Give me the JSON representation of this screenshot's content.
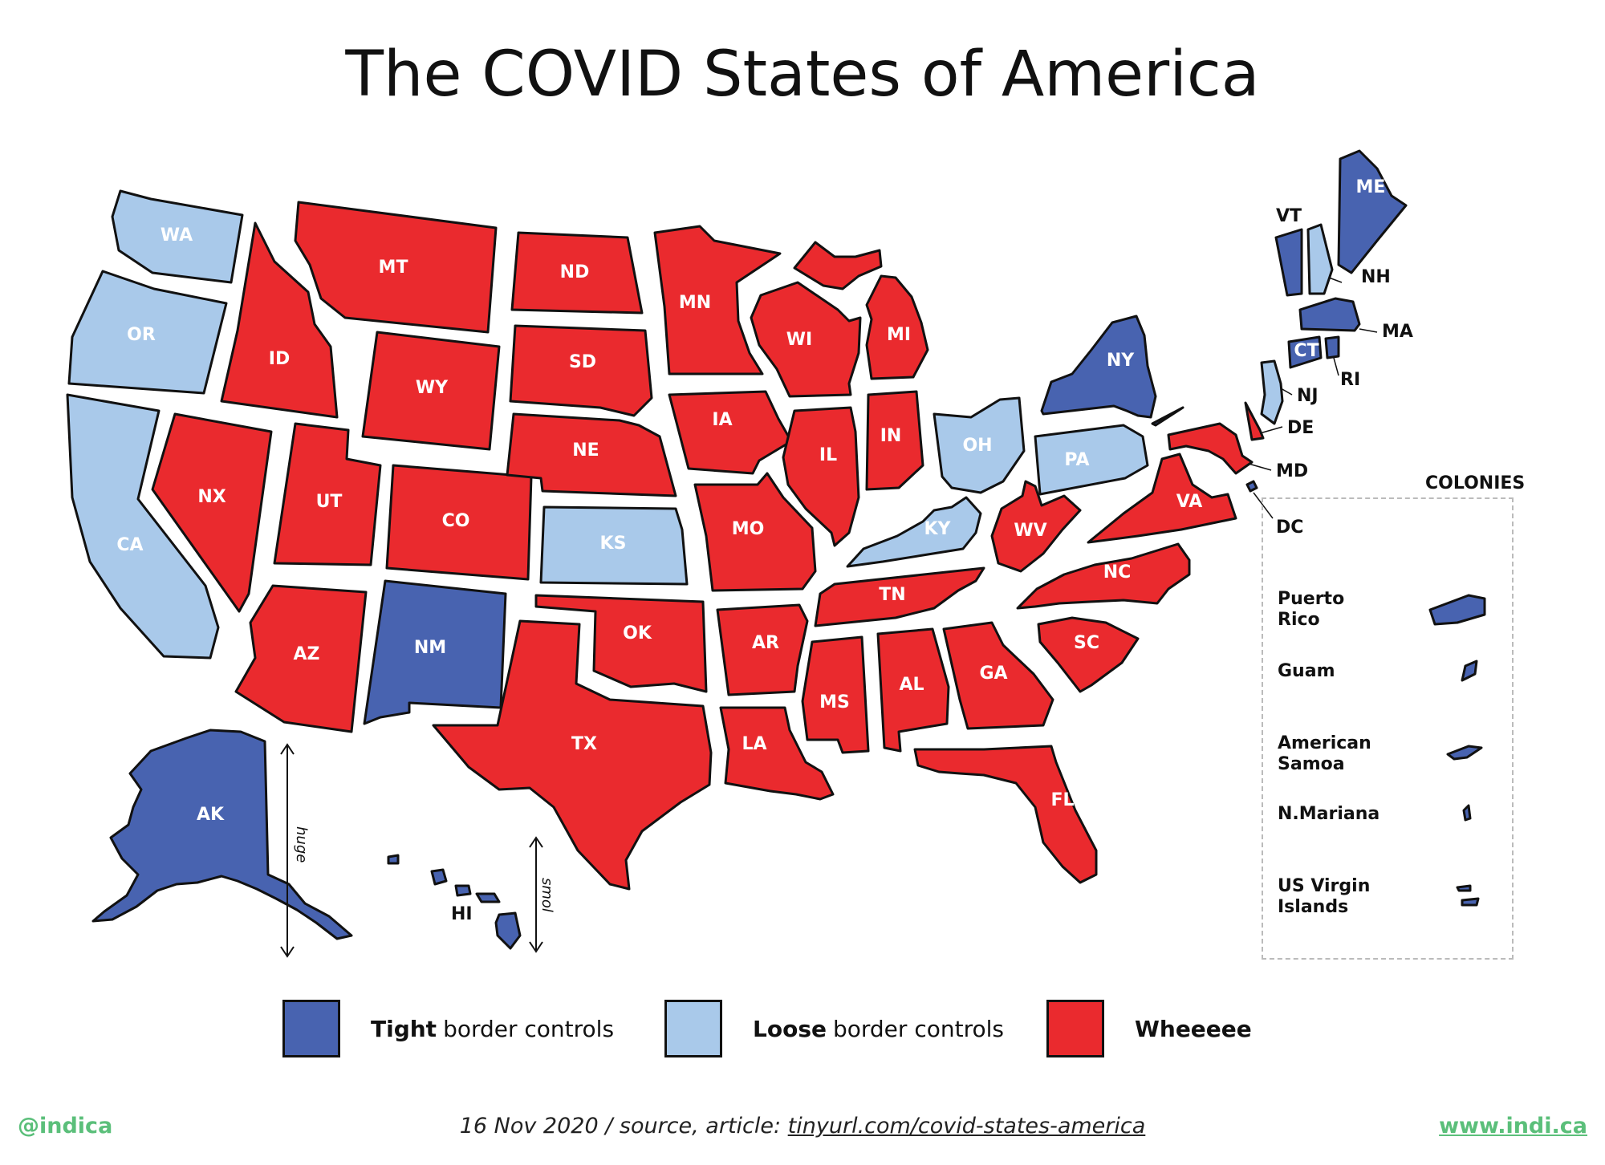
{
  "title": "The COVID States of America",
  "colors": {
    "tight": "#4863b0",
    "loose": "#a9c9ea",
    "wheeeee": "#ea2a2e",
    "accent_green": "#5bbf7a"
  },
  "categories": {
    "tight": "Tight border controls",
    "loose": "Loose border controls",
    "wheeeee": "Wheeeee"
  },
  "states": [
    {
      "abbr": "WA",
      "category": "loose"
    },
    {
      "abbr": "OR",
      "category": "loose"
    },
    {
      "abbr": "CA",
      "category": "loose"
    },
    {
      "abbr": "ID",
      "category": "wheeeee"
    },
    {
      "abbr": "NX",
      "category": "wheeeee"
    },
    {
      "abbr": "MT",
      "category": "wheeeee"
    },
    {
      "abbr": "WY",
      "category": "wheeeee"
    },
    {
      "abbr": "UT",
      "category": "wheeeee"
    },
    {
      "abbr": "CO",
      "category": "wheeeee"
    },
    {
      "abbr": "AZ",
      "category": "wheeeee"
    },
    {
      "abbr": "NM",
      "category": "tight"
    },
    {
      "abbr": "ND",
      "category": "wheeeee"
    },
    {
      "abbr": "SD",
      "category": "wheeeee"
    },
    {
      "abbr": "NE",
      "category": "wheeeee"
    },
    {
      "abbr": "KS",
      "category": "loose"
    },
    {
      "abbr": "OK",
      "category": "wheeeee"
    },
    {
      "abbr": "TX",
      "category": "wheeeee"
    },
    {
      "abbr": "MN",
      "category": "wheeeee"
    },
    {
      "abbr": "IA",
      "category": "wheeeee"
    },
    {
      "abbr": "MO",
      "category": "wheeeee"
    },
    {
      "abbr": "AR",
      "category": "wheeeee"
    },
    {
      "abbr": "LA",
      "category": "wheeeee"
    },
    {
      "abbr": "WI",
      "category": "wheeeee"
    },
    {
      "abbr": "IL",
      "category": "wheeeee"
    },
    {
      "abbr": "MI",
      "category": "wheeeee"
    },
    {
      "abbr": "IN",
      "category": "wheeeee"
    },
    {
      "abbr": "OH",
      "category": "loose"
    },
    {
      "abbr": "KY",
      "category": "loose"
    },
    {
      "abbr": "TN",
      "category": "wheeeee"
    },
    {
      "abbr": "MS",
      "category": "wheeeee"
    },
    {
      "abbr": "AL",
      "category": "wheeeee"
    },
    {
      "abbr": "GA",
      "category": "wheeeee"
    },
    {
      "abbr": "FL",
      "category": "wheeeee"
    },
    {
      "abbr": "SC",
      "category": "wheeeee"
    },
    {
      "abbr": "NC",
      "category": "wheeeee"
    },
    {
      "abbr": "VA",
      "category": "wheeeee"
    },
    {
      "abbr": "WV",
      "category": "wheeeee"
    },
    {
      "abbr": "PA",
      "category": "loose"
    },
    {
      "abbr": "NY",
      "category": "tight"
    },
    {
      "abbr": "VT",
      "category": "tight"
    },
    {
      "abbr": "NH",
      "category": "loose"
    },
    {
      "abbr": "ME",
      "category": "tight"
    },
    {
      "abbr": "MA",
      "category": "tight"
    },
    {
      "abbr": "CT",
      "category": "tight"
    },
    {
      "abbr": "RI",
      "category": "tight"
    },
    {
      "abbr": "NJ",
      "category": "loose"
    },
    {
      "abbr": "DE",
      "category": "wheeeee"
    },
    {
      "abbr": "MD",
      "category": "wheeeee"
    },
    {
      "abbr": "DC",
      "category": "tight"
    },
    {
      "abbr": "AK",
      "category": "tight"
    },
    {
      "abbr": "HI",
      "category": "tight"
    }
  ],
  "annotations": {
    "alaska_arrow": "huge",
    "hawaii_arrow": "smol"
  },
  "colonies": {
    "title": "COLONIES",
    "items": [
      {
        "name": "Puerto Rico",
        "category": "tight"
      },
      {
        "name": "Guam",
        "category": "tight"
      },
      {
        "name": "American Samoa",
        "category": "tight"
      },
      {
        "name": "N.Mariana",
        "category": "tight"
      },
      {
        "name": "US Virgin Islands",
        "category": "tight"
      }
    ]
  },
  "legend": [
    {
      "bold": "Tight",
      "rest": "border controls",
      "category": "tight"
    },
    {
      "bold": "Loose",
      "rest": "border controls",
      "category": "loose"
    },
    {
      "bold": "Wheeeee",
      "rest": "",
      "category": "wheeeee"
    }
  ],
  "footer": {
    "left": "@indica",
    "center_prefix": "16 Nov 2020 / source, article: ",
    "center_link": "tinyurl.com/covid-states-america",
    "right": "www.indi.ca"
  }
}
